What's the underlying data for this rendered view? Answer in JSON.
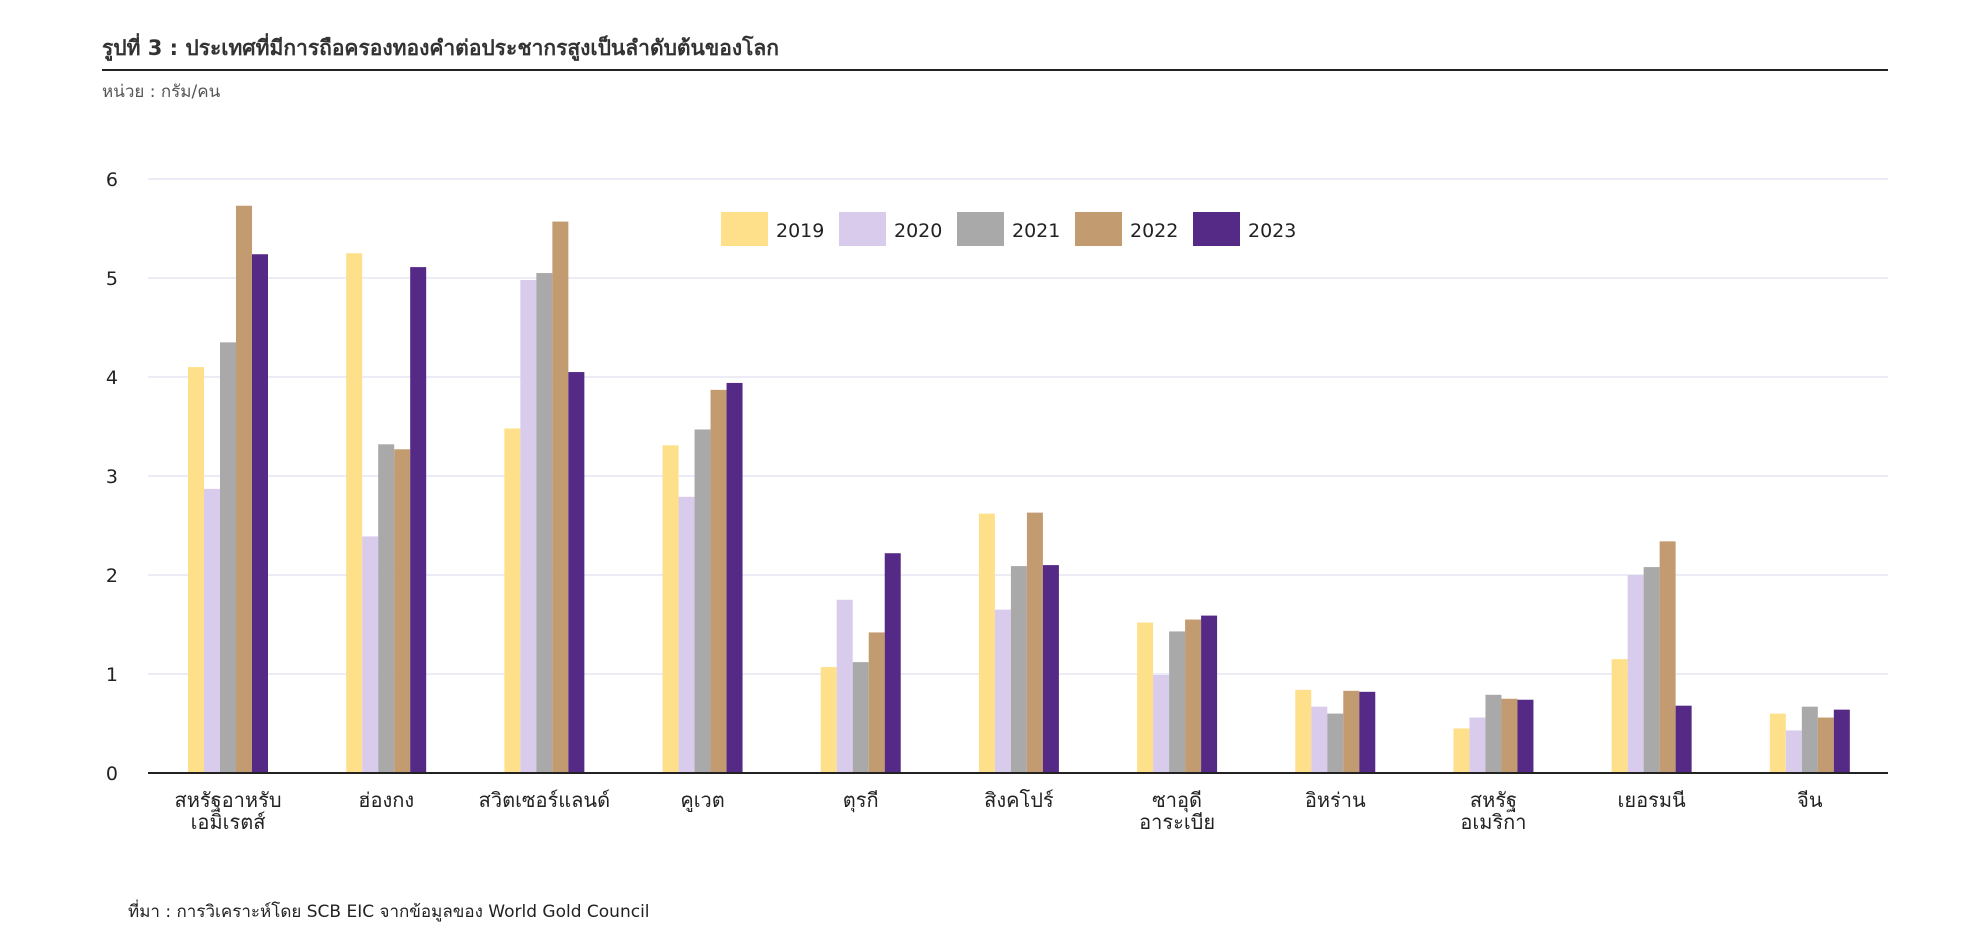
{
  "header": {
    "title": "รูปที่ 3 : ประเทศที่มีการถือครองทองคำต่อประชากรสูงเป็นลำดับต้นของโลก",
    "subtitle": "หน่วย : กรัม/คน"
  },
  "footer": {
    "source": "ที่มา : การวิเคราะห์โดย SCB EIC จากข้อมูลของ World Gold Council"
  },
  "chart_data": {
    "type": "bar",
    "ylim": [
      0,
      6
    ],
    "yticks": [
      "0",
      "1",
      "2",
      "3",
      "4",
      "5",
      "6"
    ],
    "grid": true,
    "legend_position": "top-center",
    "categories": [
      [
        "สหรัฐอาหรับ",
        "เอมิเรตส์"
      ],
      [
        "ฮ่องกง"
      ],
      [
        "สวิตเซอร์แลนด์"
      ],
      [
        "คูเวต"
      ],
      [
        "ตุรกี"
      ],
      [
        "สิงคโปร์"
      ],
      [
        "ซาอุดี",
        "อาระเบีย"
      ],
      [
        "อิหร่าน"
      ],
      [
        "สหรัฐ",
        "อเมริกา"
      ],
      [
        "เยอรมนี"
      ],
      [
        "จีน"
      ]
    ],
    "series": [
      {
        "name": "2019",
        "color": "#FFE08A",
        "values": [
          4.1,
          5.25,
          3.48,
          3.31,
          1.07,
          2.62,
          1.52,
          0.84,
          0.45,
          1.15,
          0.6
        ]
      },
      {
        "name": "2020",
        "color": "#D9CBEC",
        "values": [
          2.87,
          2.39,
          4.98,
          2.79,
          1.75,
          1.65,
          0.99,
          0.67,
          0.56,
          2.0,
          0.43
        ]
      },
      {
        "name": "2021",
        "color": "#A9A9A9",
        "values": [
          4.35,
          3.32,
          5.05,
          3.47,
          1.12,
          2.09,
          1.43,
          0.6,
          0.79,
          2.08,
          0.67
        ]
      },
      {
        "name": "2022",
        "color": "#C39B71",
        "values": [
          5.73,
          3.27,
          5.57,
          3.87,
          1.42,
          2.63,
          1.55,
          0.83,
          0.75,
          2.34,
          0.56
        ]
      },
      {
        "name": "2023",
        "color": "#552A86",
        "values": [
          5.24,
          5.11,
          4.05,
          3.94,
          2.22,
          2.1,
          1.59,
          0.82,
          0.74,
          0.68,
          0.64
        ]
      }
    ]
  }
}
